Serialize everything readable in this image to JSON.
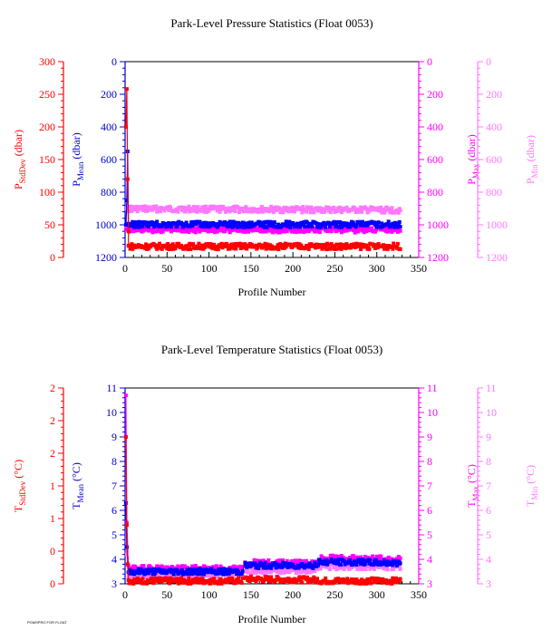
{
  "footnote": "PGMSPRO FOR FLOAT",
  "chart_data": [
    {
      "type": "scatter",
      "title": "Park-Level Pressure Statistics (Float 0053)",
      "xlabel": "Profile Number",
      "x_ticks": [
        "0",
        "50",
        "100",
        "150",
        "200",
        "250",
        "300",
        "350"
      ],
      "xlim": [
        0,
        350
      ],
      "grid": false,
      "axes": [
        {
          "name": "stddev",
          "side": "left-outer",
          "label_main": "P",
          "label_sub": "StdDev",
          "label_tail": " (dbar)",
          "color": "#ff0000",
          "ylim": [
            0,
            300
          ],
          "ticks": [
            "0",
            "50",
            "100",
            "150",
            "200",
            "250",
            "300"
          ]
        },
        {
          "name": "mean",
          "side": "left-inner",
          "label_main": "P",
          "label_sub": "Mean",
          "label_tail": " (dbar)",
          "color": "#0000cc",
          "ylim": [
            0,
            1200
          ],
          "inverted": true,
          "ticks": [
            "0",
            "200",
            "400",
            "600",
            "800",
            "1000",
            "1200"
          ]
        },
        {
          "name": "max",
          "side": "right-inner",
          "label_main": "P",
          "label_sub": "Max",
          "label_tail": " (dbar)",
          "color": "#ff00ff",
          "ylim": [
            0,
            1200
          ],
          "inverted": true,
          "ticks": [
            "0",
            "200",
            "400",
            "600",
            "800",
            "1000",
            "1200"
          ]
        },
        {
          "name": "min",
          "side": "right-outer",
          "label_main": "P",
          "label_sub": "Min",
          "label_tail": " (dbar)",
          "color": "#ff77ff",
          "ylim": [
            0,
            1200
          ],
          "inverted": true,
          "ticks": [
            "0",
            "200",
            "400",
            "600",
            "800",
            "1000",
            "1200"
          ]
        }
      ],
      "series": [
        {
          "axis": "min",
          "color": "#ff77ff",
          "spike": [
            [
              1,
              1020
            ],
            [
              2,
              900
            ]
          ],
          "segments": [
            [
              4,
              328,
              902,
              910
            ]
          ]
        },
        {
          "axis": "max",
          "color": "#ff00ff",
          "spike": [
            [
              1,
              1030
            ],
            [
              2,
              1025
            ]
          ],
          "segments": [
            [
              4,
              328,
              1030,
              1030
            ]
          ]
        },
        {
          "axis": "mean",
          "color": "#0000ff",
          "spike": [
            [
              1,
              1000
            ],
            [
              2,
              850
            ],
            [
              3,
              550
            ]
          ],
          "segments": [
            [
              4,
              328,
              998,
              998
            ]
          ]
        },
        {
          "axis": "stddev",
          "color": "#ff0000",
          "spike": [
            [
              1,
              200
            ],
            [
              2,
              258
            ],
            [
              3,
              120
            ],
            [
              4,
              40
            ]
          ],
          "segments": [
            [
              4,
              328,
              17,
              17
            ]
          ]
        }
      ]
    },
    {
      "type": "scatter",
      "title": "Park-Level Temperature Statistics (Float 0053)",
      "xlabel": "Profile Number",
      "x_ticks": [
        "0",
        "50",
        "100",
        "150",
        "200",
        "250",
        "300",
        "350"
      ],
      "xlim": [
        0,
        350
      ],
      "grid": false,
      "axes": [
        {
          "name": "stddev",
          "side": "left-outer",
          "label_main": "T",
          "label_sub": "StdDev",
          "label_tail": " (°C)",
          "color": "#ff0000",
          "ylim": [
            0,
            2
          ],
          "ticks": [
            "0",
            "0",
            "1",
            "1",
            "2",
            "2",
            "2"
          ]
        },
        {
          "name": "mean",
          "side": "left-inner",
          "label_main": "T",
          "label_sub": "Mean",
          "label_tail": " (°C)",
          "color": "#0000cc",
          "ylim": [
            3,
            11
          ],
          "ticks": [
            "3",
            "4",
            "5",
            "6",
            "7",
            "8",
            "9",
            "10",
            "11"
          ]
        },
        {
          "name": "max",
          "side": "right-inner",
          "label_main": "T",
          "label_sub": "Max",
          "label_tail": " (°C)",
          "color": "#ff00ff",
          "ylim": [
            3,
            11
          ],
          "ticks": [
            "3",
            "4",
            "5",
            "6",
            "7",
            "8",
            "9",
            "10",
            "11"
          ]
        },
        {
          "name": "min",
          "side": "right-outer",
          "label_main": "T",
          "label_sub": "Min",
          "label_tail": " (°C)",
          "color": "#ff77ff",
          "ylim": [
            3,
            11
          ],
          "ticks": [
            "3",
            "4",
            "5",
            "6",
            "7",
            "8",
            "9",
            "10",
            "11"
          ]
        }
      ],
      "series": [
        {
          "axis": "max",
          "color": "#ff00ff",
          "spike": [
            [
              1,
              10.7
            ],
            [
              2,
              5.5
            ]
          ],
          "segments": [
            [
              4,
              140,
              3.65,
              3.6
            ],
            [
              143,
              230,
              3.85,
              3.85
            ],
            [
              231,
              328,
              4.05,
              4.0
            ]
          ]
        },
        {
          "axis": "min",
          "color": "#ff77ff",
          "spike": [
            [
              1,
              9.0
            ],
            [
              2,
              4.2
            ]
          ],
          "segments": [
            [
              4,
              140,
              3.35,
              3.4
            ],
            [
              143,
              230,
              3.55,
              3.55
            ],
            [
              231,
              328,
              3.7,
              3.7
            ]
          ]
        },
        {
          "axis": "mean",
          "color": "#0000ff",
          "spike": [
            [
              1,
              6.3
            ],
            [
              2,
              4.5
            ]
          ],
          "segments": [
            [
              4,
              140,
              3.5,
              3.5
            ],
            [
              143,
              230,
              3.75,
              3.75
            ],
            [
              231,
              328,
              3.9,
              3.85
            ]
          ]
        },
        {
          "axis": "stddev",
          "color": "#ff0000",
          "spike": [
            [
              1,
              1.5
            ],
            [
              2,
              0.6
            ],
            [
              3,
              0.2
            ]
          ],
          "segments": [
            [
              4,
              140,
              0.03,
              0.03
            ],
            [
              143,
              230,
              0.05,
              0.04
            ],
            [
              231,
              328,
              0.03,
              0.03
            ]
          ]
        }
      ]
    }
  ]
}
